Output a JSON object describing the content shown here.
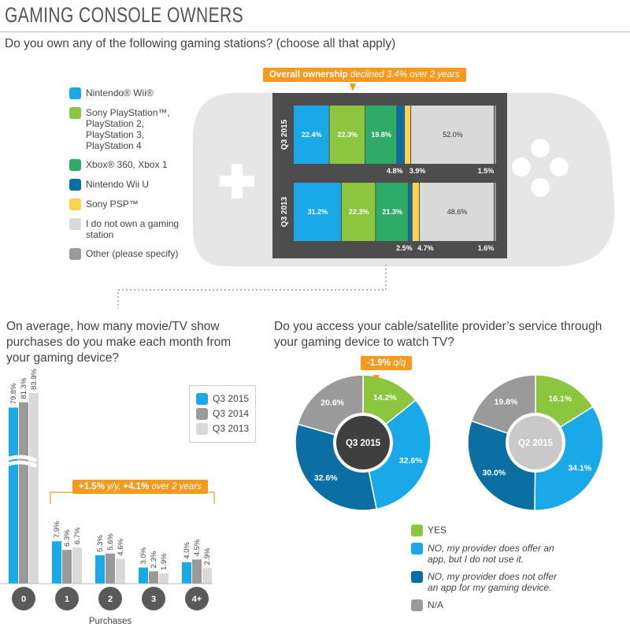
{
  "title": "GAMING CONSOLE OWNERS",
  "question_1": "Do you own any of the following gaming stations? (choose all that apply)",
  "question_2": "On average, how many movie/TV show purchases do you make each month from your gaming device?",
  "question_3": "Do you access your cable/satellite provider’s service through your gaming device to watch TV?",
  "colors": {
    "wii": "#1aa9e8",
    "ps": "#8cc63f",
    "xbox": "#2eac66",
    "wiiu": "#0b6fa4",
    "psp": "#ffd24d",
    "none": "#d9d9d9",
    "other": "#9a9a9a",
    "accent": "#f39a1f"
  },
  "console_legend": [
    {
      "label": "Nintendo® Wii®",
      "color": "#1aa9e8"
    },
    {
      "label": "Sony PlayStation™, PlayStation 2, PlayStation 3, PlayStation 4",
      "color": "#8cc63f"
    },
    {
      "label": "Xbox® 360, Xbox 1",
      "color": "#2eac66"
    },
    {
      "label": "Nintendo Wii U",
      "color": "#0b6fa4"
    },
    {
      "label": "Sony PSP™",
      "color": "#ffd24d"
    },
    {
      "label": "I do not own a gaming station",
      "color": "#d9d9d9"
    },
    {
      "label": "Other (please specify)",
      "color": "#9a9a9a"
    }
  ],
  "callout_ownership": {
    "bold": "Overall ownership",
    "italic": " declined 3.4% over 2 years"
  },
  "callout_purchases": {
    "bold": "+1.5%",
    "italic": " y/y, ",
    "bold2": "+4.1%",
    "italic2": " over 2 years"
  },
  "callout_pie": {
    "bold": "-1.9%",
    "italic": " q/q"
  },
  "bar_legend": [
    {
      "label": "Q3 2015",
      "color": "#1aa9e8"
    },
    {
      "label": "Q3 2014",
      "color": "#9a9a9a"
    },
    {
      "label": "Q3 2013",
      "color": "#d9d9d9"
    }
  ],
  "purchases_xlabel": "Purchases",
  "pie_legend": [
    {
      "label": "YES",
      "color": "#8cc63f",
      "italic": false
    },
    {
      "label": "NO, my provider does offer an app, but I do not use it.",
      "color": "#1aa9e8",
      "italic": true
    },
    {
      "label": "NO, my provider does not offer an app for my gaming device.",
      "color": "#0b6fa4",
      "italic": true
    },
    {
      "label": "N/A",
      "color": "#9a9a9a",
      "italic": false
    }
  ],
  "chart_data": [
    {
      "type": "bar",
      "orientation": "horizontal-stacked",
      "categories": [
        "Q3 2015",
        "Q3 2013"
      ],
      "series": [
        {
          "name": "Nintendo® Wii®",
          "values": [
            22.4,
            31.2
          ],
          "labels": [
            "22.4%",
            "31.2%"
          ]
        },
        {
          "name": "Sony PlayStation™, PlayStation 2, PlayStation 3, PlayStation 4",
          "values": [
            22.3,
            22.3
          ],
          "labels": [
            "22.3%",
            "22.3%"
          ]
        },
        {
          "name": "Xbox® 360, Xbox 1",
          "values": [
            19.8,
            21.3
          ],
          "labels": [
            "19.8%",
            "21.3%"
          ]
        },
        {
          "name": "Nintendo Wii U",
          "values": [
            4.8,
            2.5
          ],
          "labels": [
            "4.8%",
            "2.5%"
          ]
        },
        {
          "name": "Sony PSP™",
          "values": [
            3.9,
            4.7
          ],
          "labels": [
            "3.9%",
            "4.7%"
          ]
        },
        {
          "name": "I do not own a gaming station",
          "values": [
            52.0,
            48.6
          ],
          "labels": [
            "52.0%",
            "48.6%"
          ]
        },
        {
          "name": "Other (please specify)",
          "values": [
            1.5,
            1.6
          ],
          "labels": [
            "1.5%",
            "1.6%"
          ]
        }
      ]
    },
    {
      "type": "bar",
      "categories": [
        "0",
        "1",
        "2",
        "3",
        "4+"
      ],
      "series": [
        {
          "name": "Q3 2015",
          "values": [
            79.8,
            7.9,
            5.3,
            3.0,
            4.0
          ],
          "labels": [
            "79.8%",
            "7.9%",
            "5.3%",
            "3.0%",
            "4.0%"
          ]
        },
        {
          "name": "Q3 2014",
          "values": [
            81.3,
            6.3,
            5.6,
            2.3,
            4.5
          ],
          "labels": [
            "81.3%",
            "6.3%",
            "5.6%",
            "2.3%",
            "4.5%"
          ]
        },
        {
          "name": "Q3 2013",
          "values": [
            83.9,
            6.7,
            4.6,
            1.9,
            2.9
          ],
          "labels": [
            "83.9%",
            "6.7%",
            "4.6%",
            "1.9%",
            "2.9%"
          ]
        }
      ],
      "xlabel": "Purchases",
      "axis_break": true
    },
    {
      "type": "pie",
      "center_label": "Q3 2015",
      "slices": [
        {
          "name": "YES",
          "value": 14.2,
          "label": "14.2%"
        },
        {
          "name": "NO, my provider does offer an app, but I do not use it.",
          "value": 32.6,
          "label": "32.6%"
        },
        {
          "name": "NO, my provider does not offer an app for my gaming device.",
          "value": 32.6,
          "label": "32.6%"
        },
        {
          "name": "N/A",
          "value": 20.6,
          "label": "20.6%"
        }
      ]
    },
    {
      "type": "pie",
      "center_label": "Q2 2015",
      "slices": [
        {
          "name": "YES",
          "value": 16.1,
          "label": "16.1%"
        },
        {
          "name": "NO, my provider does offer an app, but I do not use it.",
          "value": 34.1,
          "label": "34.1%"
        },
        {
          "name": "NO, my provider does not offer an app for my gaming device.",
          "value": 30.0,
          "label": "30.0%"
        },
        {
          "name": "N/A",
          "value": 19.8,
          "label": "19.8%"
        }
      ]
    }
  ]
}
